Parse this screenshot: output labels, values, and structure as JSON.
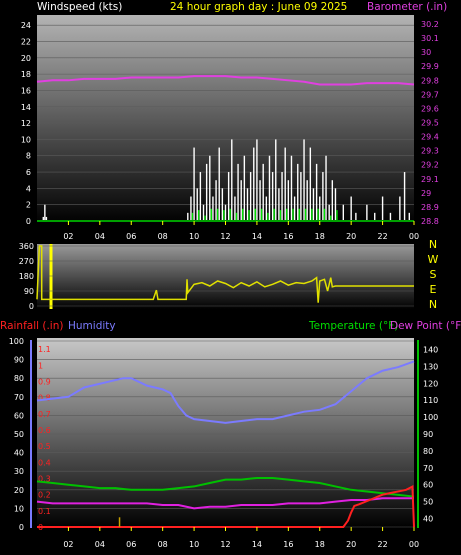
{
  "header": {
    "left_label": "Windspeed (kts)",
    "title": "24 hour graph day : June 09 2025",
    "right_label": "Barometer (.in)"
  },
  "compass": [
    "N",
    "W",
    "S",
    "E",
    "N"
  ],
  "bottom_header": {
    "rainfall_label": "Rainfall (.in)",
    "humidity_label": "Humidity",
    "temperature_label": "Temperature (°F)",
    "dewpoint_label": "Dew Point (°F)"
  },
  "colors": {
    "windspeed": "#ffffff",
    "gust": "#00e000",
    "barometer": "#e040e0",
    "direction": "#e0e000",
    "rainfall": "#ff2020",
    "humidity": "#7b7bff",
    "temperature": "#00c000",
    "dewpoint": "#e020e0",
    "hour_tick": "#ffff00"
  },
  "chart_data": [
    {
      "type": "bar",
      "name": "windspeed",
      "x_ticks": [
        "02",
        "04",
        "06",
        "08",
        "10",
        "12",
        "14",
        "16",
        "18",
        "20",
        "22",
        "00"
      ],
      "y_ticks": [
        "0",
        "2",
        "4",
        "6",
        "8",
        "10",
        "12",
        "14",
        "16",
        "18",
        "20",
        "22",
        "24"
      ],
      "ylim": [
        0,
        25
      ],
      "xlim": [
        0,
        24
      ],
      "series": [
        {
          "x": [
            0.4,
            0.5,
            0.6,
            9.6,
            9.8,
            10,
            10.2,
            10.4,
            10.6,
            10.8,
            11,
            11.2,
            11.4,
            11.6,
            11.8,
            12,
            12.2,
            12.4,
            12.6,
            12.8,
            13,
            13.2,
            13.4,
            13.6,
            13.8,
            14,
            14.2,
            14.4,
            14.6,
            14.8,
            15,
            15.2,
            15.4,
            15.6,
            15.8,
            16,
            16.2,
            16.4,
            16.6,
            16.8,
            17,
            17.2,
            17.4,
            17.6,
            17.8,
            18,
            18.2,
            18.4,
            18.6,
            18.8,
            19,
            19.5,
            20,
            20.3,
            21,
            21.5,
            22,
            22.5,
            23.1,
            23.4,
            23.7
          ],
          "values": [
            0.5,
            2,
            0.5,
            1,
            3,
            9,
            4,
            6,
            2,
            7,
            8,
            3,
            5,
            9,
            4,
            2,
            6,
            10,
            3,
            7,
            5,
            8,
            4,
            6,
            9,
            10,
            5,
            7,
            3,
            8,
            6,
            10,
            4,
            6,
            9,
            5,
            8,
            3,
            7,
            6,
            10,
            5,
            9,
            4,
            7,
            3,
            6,
            8,
            2,
            5,
            4,
            2,
            3,
            1,
            2,
            1,
            3,
            1,
            3,
            6,
            1
          ]
        }
      ]
    },
    {
      "type": "line",
      "name": "barometer",
      "y_ticks": [
        "28.8",
        "28.9",
        "29",
        "29.1",
        "29.2",
        "29.3",
        "29.4",
        "29.5",
        "29.6",
        "29.7",
        "29.8",
        "29.9",
        "30",
        "30.1",
        "30.2"
      ],
      "ylim": [
        28.8,
        30.25
      ],
      "series": [
        {
          "x": [
            0,
            1,
            2,
            3,
            4,
            5,
            6,
            7,
            8,
            9,
            10,
            11,
            12,
            13,
            14,
            15,
            16,
            17,
            18,
            19,
            20,
            21,
            22,
            23,
            24
          ],
          "values": [
            29.79,
            29.8,
            29.8,
            29.81,
            29.81,
            29.81,
            29.82,
            29.82,
            29.82,
            29.82,
            29.83,
            29.83,
            29.83,
            29.82,
            29.82,
            29.81,
            29.8,
            29.79,
            29.77,
            29.77,
            29.77,
            29.78,
            29.78,
            29.78,
            29.77
          ]
        }
      ]
    },
    {
      "type": "line",
      "name": "wind_direction",
      "y_ticks": [
        "0",
        "90",
        "180",
        "270",
        "360"
      ],
      "ylim": [
        0,
        360
      ],
      "series": [
        {
          "x": [
            0,
            0.15,
            0.3,
            0.3,
            7.4,
            7.6,
            7.7,
            9.5,
            9.55,
            9.6,
            10,
            10.5,
            11,
            11.5,
            12,
            12.5,
            13,
            13.5,
            14,
            14.5,
            15,
            15.5,
            16,
            16.5,
            17,
            17.5,
            17.8,
            17.9,
            18,
            18.3,
            18.5,
            18.7,
            18.8,
            19,
            24
          ],
          "values": [
            40,
            360,
            360,
            40,
            40,
            95,
            40,
            40,
            160,
            80,
            130,
            140,
            120,
            150,
            135,
            110,
            140,
            120,
            145,
            115,
            130,
            150,
            125,
            140,
            135,
            150,
            170,
            20,
            150,
            160,
            90,
            170,
            115,
            120,
            120
          ]
        }
      ]
    },
    {
      "type": "line",
      "name": "humidity",
      "y_ticks": [
        "0",
        "10",
        "20",
        "30",
        "40",
        "50",
        "60",
        "70",
        "80",
        "90",
        "100"
      ],
      "ylim": [
        0,
        100
      ],
      "series": [
        {
          "x": [
            0,
            1,
            2,
            3,
            4,
            5,
            5.5,
            6,
            7,
            8,
            8.5,
            9,
            9.5,
            10,
            11,
            12,
            13,
            14,
            15,
            16,
            17,
            18,
            19,
            20,
            21,
            22,
            23,
            24
          ],
          "values": [
            68,
            69,
            70,
            75,
            77,
            79,
            80,
            80,
            76,
            74,
            72,
            65,
            60,
            58,
            57,
            56,
            57,
            58,
            58,
            60,
            62,
            63,
            66,
            73,
            80,
            84,
            86,
            89
          ]
        }
      ]
    },
    {
      "type": "line",
      "name": "rainfall",
      "y_ticks": [
        "0",
        "0.1",
        "0.2",
        "0.3",
        "0.4",
        "0.5",
        "0.6",
        "0.7",
        "0.8",
        "0.9",
        "1",
        "1.1"
      ],
      "ylim": [
        0,
        1.15
      ],
      "series": [
        {
          "x": [
            0,
            19.5,
            19.8,
            20,
            20.2,
            20.5,
            21,
            21.5,
            22,
            22.5,
            23,
            23.5,
            23.9,
            24
          ],
          "values": [
            0,
            0,
            0.04,
            0.09,
            0.13,
            0.14,
            0.16,
            0.18,
            0.2,
            0.21,
            0.22,
            0.23,
            0.25,
            0
          ]
        }
      ]
    },
    {
      "type": "line",
      "name": "temperature",
      "y_ticks": [
        "40",
        "50",
        "60",
        "70",
        "80",
        "90",
        "100",
        "110",
        "120",
        "130",
        "140"
      ],
      "ylim": [
        35,
        145
      ],
      "series": [
        {
          "x": [
            0,
            1,
            2,
            3,
            4,
            5,
            6,
            7,
            8,
            9,
            10,
            11,
            12,
            13,
            14,
            15,
            16,
            17,
            18,
            19,
            20,
            21,
            22,
            23,
            24
          ],
          "values": [
            62,
            61,
            60,
            59,
            58,
            58,
            57,
            57,
            57,
            58,
            59,
            61,
            63,
            63,
            64,
            64,
            63,
            62,
            61,
            59,
            57,
            56,
            55,
            54,
            53
          ]
        }
      ]
    },
    {
      "type": "line",
      "name": "dewpoint",
      "series": [
        {
          "x": [
            0,
            1,
            2,
            3,
            4,
            5,
            6,
            7,
            8,
            9,
            10,
            11,
            12,
            13,
            14,
            15,
            16,
            17,
            18,
            19,
            20,
            21,
            22,
            23,
            24
          ],
          "values": [
            50,
            49,
            49,
            49,
            49,
            49,
            49,
            49,
            48,
            48,
            46,
            47,
            47,
            48,
            48,
            48,
            49,
            49,
            49,
            50,
            51,
            51,
            52,
            52,
            52
          ]
        }
      ]
    },
    {
      "type": "bar",
      "name": "rain_rate_markers",
      "series": [
        {
          "x": [
            5.0
          ],
          "values": [
            0.06
          ]
        }
      ]
    }
  ]
}
